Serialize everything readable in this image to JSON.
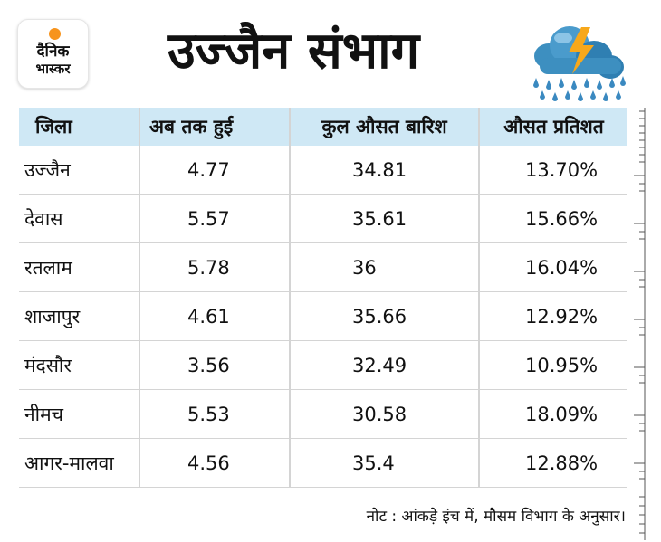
{
  "logo": {
    "line1": "दैनिक",
    "line2": "भास्कर"
  },
  "title": "उज्जैन संभाग",
  "weather_icon": "storm-cloud-rain-icon",
  "colors": {
    "header_bg": "#cfe8f5",
    "logo_dot": "#f7941d",
    "cloud": "#3d8fc0",
    "bolt": "#f7a81b",
    "rain": "#3a89c0"
  },
  "table": {
    "headers": [
      "जिला",
      "अब तक हुई",
      "कुल औसत बारिश",
      "औसत प्रतिशत"
    ],
    "rows": [
      [
        "उज्जैन",
        "4.77",
        "34.81",
        "13.70%"
      ],
      [
        "देवास",
        "5.57",
        "35.61",
        "15.66%"
      ],
      [
        "रतलाम",
        "5.78",
        "36",
        "16.04%"
      ],
      [
        "शाजापुर",
        "4.61",
        "35.66",
        "12.92%"
      ],
      [
        "मंदसौर",
        "3.56",
        "32.49",
        "10.95%"
      ],
      [
        "नीमच",
        "5.53",
        "30.58",
        "18.09%"
      ],
      [
        "आगर-मालवा",
        "4.56",
        "35.4",
        "12.88%"
      ]
    ]
  },
  "note": "नोट : आंकड़े इंच में, मौसम विभाग के अनुसार।"
}
